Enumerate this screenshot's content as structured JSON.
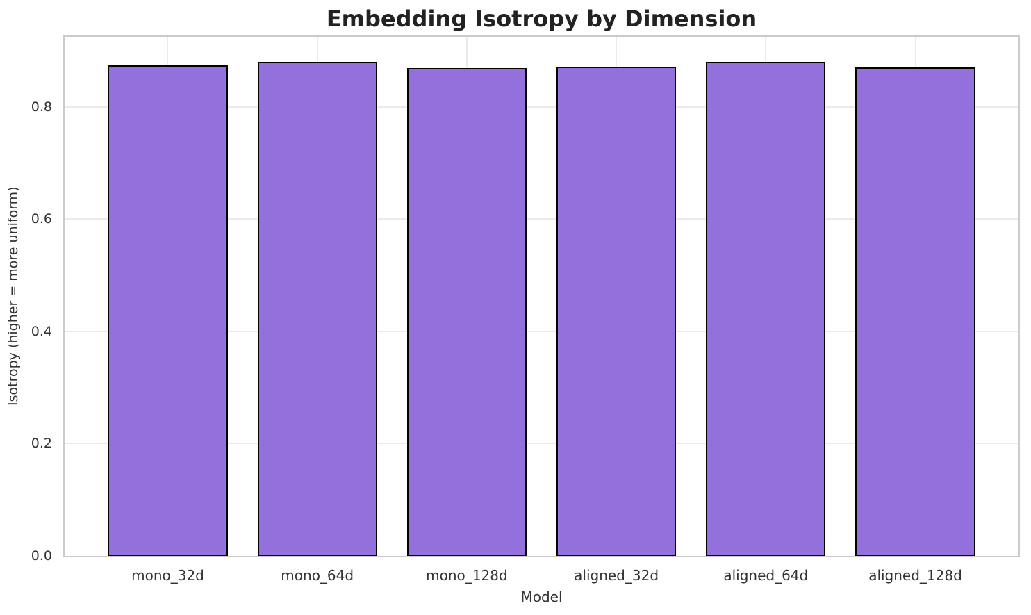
{
  "chart_data": {
    "type": "bar",
    "title": "Embedding Isotropy by Dimension",
    "xlabel": "Model",
    "ylabel": "Isotropy (higher = more uniform)",
    "categories": [
      "mono_32d",
      "mono_64d",
      "mono_128d",
      "aligned_32d",
      "aligned_64d",
      "aligned_128d"
    ],
    "values": [
      0.874,
      0.88,
      0.869,
      0.872,
      0.881,
      0.87
    ],
    "ylim": [
      0,
      0.925
    ],
    "xlim": [
      -0.69,
      5.69
    ],
    "bar_width": 0.8,
    "yticks": [
      0.0,
      0.2,
      0.4,
      0.6,
      0.8
    ],
    "ytick_labels": [
      "0.0",
      "0.2",
      "0.4",
      "0.6",
      "0.8"
    ],
    "grid": true,
    "legend": "none",
    "colors": {
      "bar_fill": "#9370DB",
      "bar_edge": "#000000",
      "gridline": "#EBEBEB",
      "spine": "#CBCBCB",
      "title_text": "#222222",
      "tick_text": "#333333"
    }
  }
}
